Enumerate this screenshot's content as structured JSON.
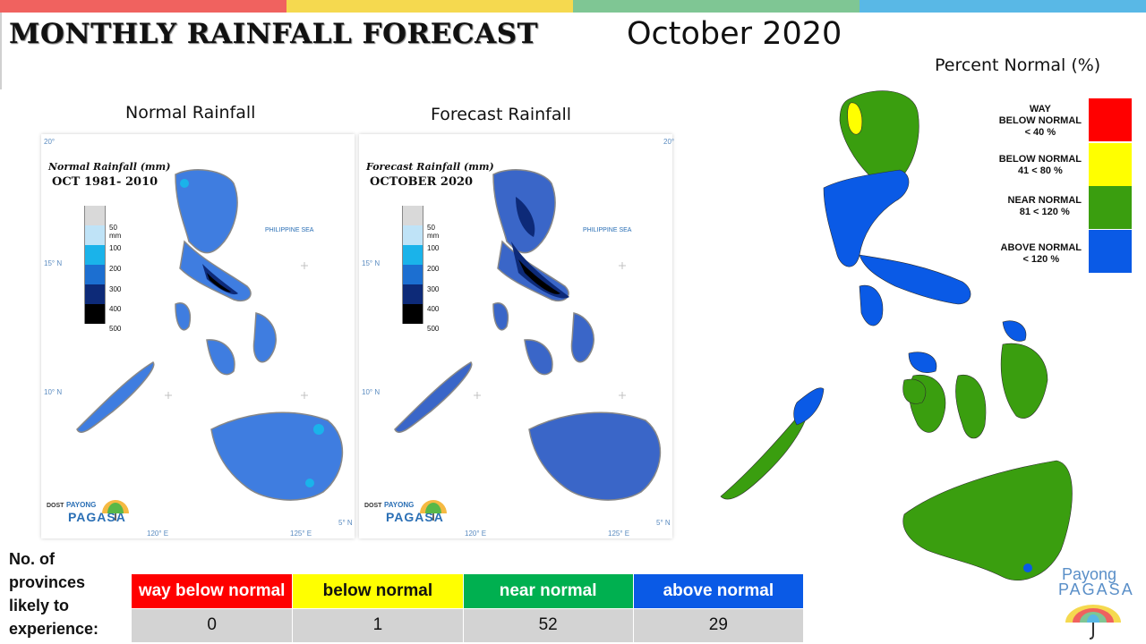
{
  "header": {
    "title": "MONTHLY RAINFALL FORECAST",
    "month": "October 2020",
    "bar_colors": [
      "#f0625f",
      "#f5d94f",
      "#7fc694",
      "#59b8e6"
    ]
  },
  "panels": {
    "normal": {
      "title": "Normal Rainfall",
      "map_label": "Normal Rainfall (mm)",
      "map_sublabel": "OCT 1981- 2010"
    },
    "forecast": {
      "title": "Forecast Rainfall",
      "map_label": "Forecast Rainfall (mm)",
      "map_sublabel": "OCTOBER 2020"
    },
    "scale": [
      {
        "label": "50 mm",
        "color": "#d9d9d9"
      },
      {
        "label": "100",
        "color": "#bfe3f7"
      },
      {
        "label": "200",
        "color": "#1ab3ea"
      },
      {
        "label": "300",
        "color": "#1c6fd1"
      },
      {
        "label": "400",
        "color": "#0d2a78"
      },
      {
        "label": "500",
        "color": "#000000"
      }
    ],
    "sea_label": "PHILIPPINE SEA",
    "axis": {
      "lat_20": "20°",
      "lat_15": "15° N",
      "lat_10": "10° N",
      "lat_5": "5° N",
      "lon_120": "120° E",
      "lon_125": "125° E"
    },
    "logo": {
      "dost": "DOST",
      "payong": "PAYONG",
      "pagasa": "PAGASA"
    }
  },
  "percent_normal": {
    "title": "Percent Normal (%)",
    "legend": [
      {
        "label": "WAY\nBELOW NORMAL\n< 40 %",
        "color": "#ff0000"
      },
      {
        "label": "BELOW NORMAL\n41 < 80 %",
        "color": "#ffff00"
      },
      {
        "label": "NEAR NORMAL\n81 < 120 %",
        "color": "#3a9e0f"
      },
      {
        "label": "ABOVE NORMAL\n< 120 %",
        "color": "#0a5ae6"
      }
    ]
  },
  "provinces": {
    "label": "No. of provinces likely to experience:",
    "categories": [
      {
        "name": "way below normal",
        "count": "0",
        "bg": "#ff0000",
        "fg": "#ffffff"
      },
      {
        "name": "below normal",
        "count": "1",
        "bg": "#ffff00",
        "fg": "#111111"
      },
      {
        "name": "near normal",
        "count": "52",
        "bg": "#00b050",
        "fg": "#ffffff"
      },
      {
        "name": "above normal",
        "count": "29",
        "bg": "#0a5ae6",
        "fg": "#ffffff"
      }
    ]
  },
  "logo": {
    "payong": "Payong",
    "pagasa": "PAGASA"
  }
}
